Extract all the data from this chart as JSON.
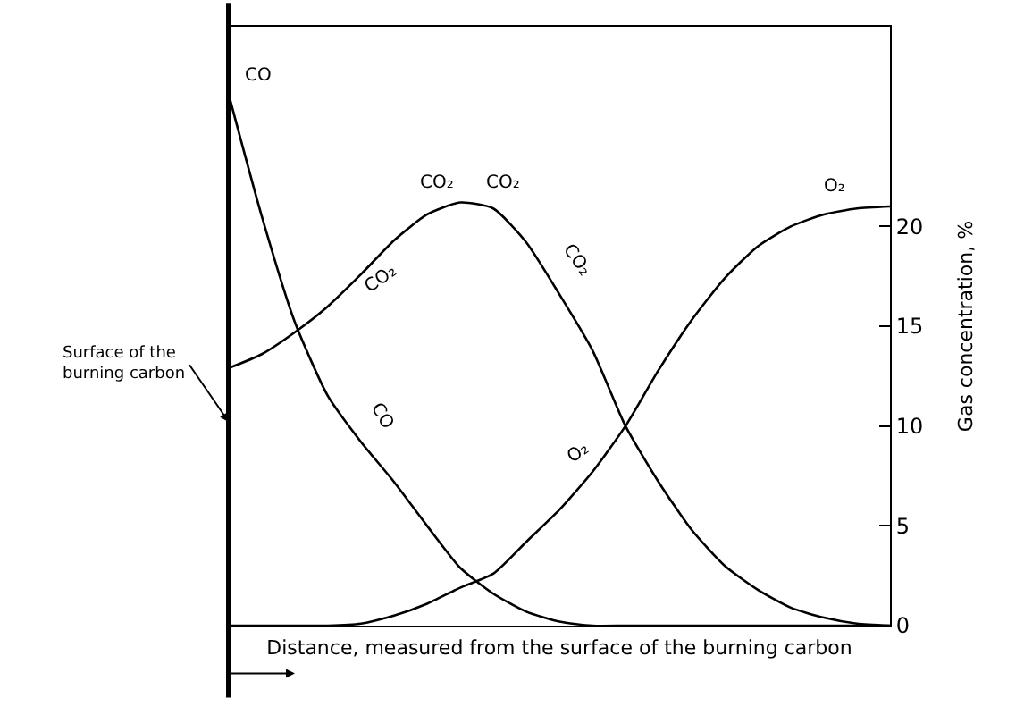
{
  "chart_data": {
    "type": "line",
    "xlabel": "Distance, measured from the surface of the burning carbon",
    "ylabel": "Gas concentration, %",
    "categories": [
      null,
      null,
      null,
      null,
      null,
      null,
      null,
      null,
      null,
      null,
      null,
      null,
      null,
      null,
      null,
      null,
      null,
      null,
      null,
      null,
      null
    ],
    "series": [
      {
        "color": "#000000",
        "values": [
          26.6,
          20.5,
          15.2,
          11.5,
          9.2,
          7.2,
          5.0,
          2.9,
          1.6,
          0.7,
          0.2,
          0,
          0,
          0,
          0,
          0,
          0,
          0,
          0,
          0,
          0
        ]
      },
      {
        "color": "#000000",
        "values": [
          12.9,
          13.6,
          14.7,
          16.0,
          17.6,
          19.3,
          20.6,
          21.2,
          20.9,
          19.2,
          16.6,
          13.8,
          10.0,
          7.2,
          4.8,
          3.0,
          1.8,
          0.9,
          0.4,
          0.1,
          0
        ]
      },
      {
        "color": "#000000",
        "values": [
          0,
          0,
          0,
          0,
          0.1,
          0.5,
          1.1,
          1.9,
          2.6,
          4.2,
          5.8,
          7.7,
          10.0,
          12.8,
          15.3,
          17.4,
          19.0,
          20.0,
          20.6,
          20.9,
          21.0
        ]
      }
    ],
    "ylim": [
      0,
      30
    ],
    "yticks": [
      0,
      5,
      10,
      15,
      20
    ],
    "tick_labels": "y",
    "marker": "none",
    "line_style": "solid",
    "annotations": [
      "CO",
      "CO₂",
      "CO₂",
      "CO₂",
      "CO₂",
      "CO",
      "O₂",
      "O₂",
      "Surface of the burning carbon"
    ]
  }
}
